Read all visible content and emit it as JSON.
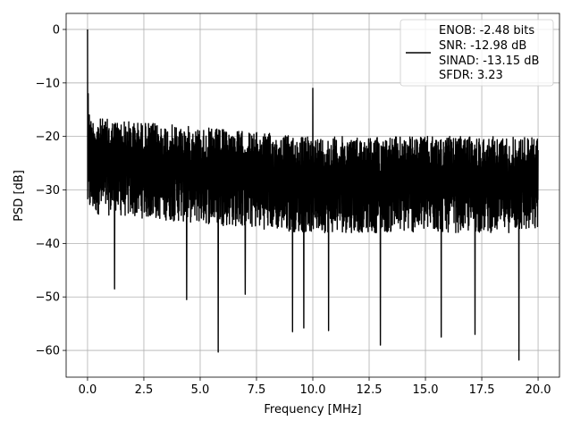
{
  "chart_data": {
    "type": "line",
    "title": "",
    "xlabel": "Frequency [MHz]",
    "ylabel": "PSD [dB]",
    "xlim": [
      -0.95,
      20.95
    ],
    "ylim": [
      -65,
      3
    ],
    "xticks": [
      0.0,
      2.5,
      5.0,
      7.5,
      10.0,
      12.5,
      15.0,
      17.5,
      20.0
    ],
    "xtick_labels": [
      "0.0",
      "2.5",
      "5.0",
      "7.5",
      "10.0",
      "12.5",
      "15.0",
      "17.5",
      "20.0"
    ],
    "yticks": [
      0,
      -10,
      -20,
      -30,
      -40,
      -50,
      -60
    ],
    "ytick_labels": [
      "0",
      "−10",
      "−20",
      "−30",
      "−40",
      "−50",
      "−60"
    ],
    "grid": true,
    "legend_position": "top-right",
    "series": [
      {
        "name": "",
        "color": "#000000",
        "noise_floor_mean_db": -29,
        "noise_upper_db": -20,
        "noise_lower_db": -38,
        "x_start": 0.0,
        "x_end": 20.0,
        "peaks": [
          {
            "x": 0.0,
            "y": 0.0
          },
          {
            "x": 0.03,
            "y": -12
          },
          {
            "x": 0.08,
            "y": -16
          },
          {
            "x": 10.0,
            "y": -11
          }
        ],
        "dips": [
          {
            "x": 1.2,
            "y": -48.5
          },
          {
            "x": 4.4,
            "y": -50.5
          },
          {
            "x": 5.8,
            "y": -60.3
          },
          {
            "x": 7.0,
            "y": -49.5
          },
          {
            "x": 9.1,
            "y": -56.5
          },
          {
            "x": 9.6,
            "y": -55.8
          },
          {
            "x": 10.7,
            "y": -56.3
          },
          {
            "x": 13.0,
            "y": -59.0
          },
          {
            "x": 15.7,
            "y": -57.5
          },
          {
            "x": 17.2,
            "y": -57.0
          },
          {
            "x": 19.15,
            "y": -61.8
          }
        ]
      }
    ],
    "legend_lines": [
      "ENOB: -2.48 bits",
      "SNR: -12.98 dB",
      "SINAD: -13.15 dB",
      "SFDR: 3.23"
    ]
  }
}
